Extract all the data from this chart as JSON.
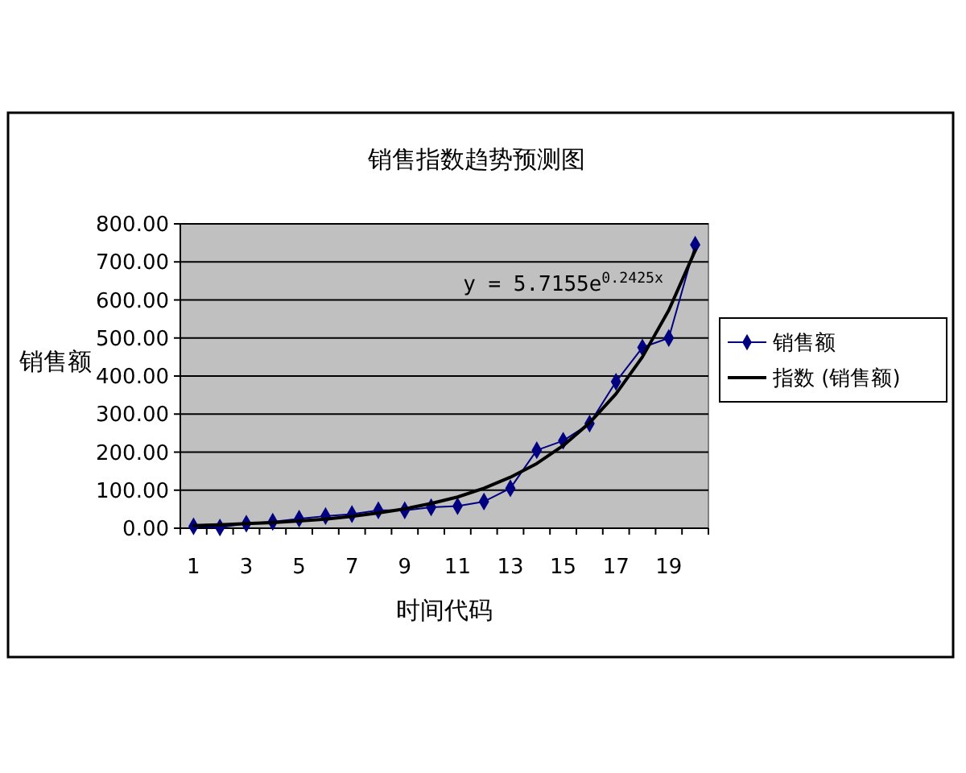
{
  "chart_data": {
    "type": "line",
    "title": "销售指数趋势预测图",
    "xlabel": "时间代码",
    "ylabel": "销售额",
    "x": [
      1,
      2,
      3,
      4,
      5,
      6,
      7,
      8,
      9,
      10,
      11,
      12,
      13,
      14,
      15,
      16,
      17,
      18,
      19,
      20
    ],
    "series": [
      {
        "name": "销售额",
        "color": "#000080",
        "values": [
          5,
          2,
          12,
          17,
          25,
          32,
          37,
          47,
          47,
          55,
          58,
          70,
          105,
          205,
          230,
          275,
          385,
          475,
          500,
          745
        ]
      },
      {
        "name": "指数 (销售额)",
        "type": "line",
        "color": "#000000",
        "marker": "none",
        "values": [
          7,
          9,
          12,
          15,
          19,
          24,
          31,
          40,
          51,
          65,
          82,
          105,
          134,
          170,
          217,
          277,
          353,
          450,
          573,
          730
        ]
      }
    ],
    "xlim": [
      0.5,
      20.5
    ],
    "xticks": [
      {
        "value": 0.5,
        "label": null
      },
      1,
      {
        "value": 1.5,
        "label": null
      },
      {
        "value": 2.5,
        "label": null
      },
      3,
      {
        "value": 3.5,
        "label": null
      },
      {
        "value": 4.5,
        "label": null
      },
      5,
      {
        "value": 5.5,
        "label": null
      },
      {
        "value": 6.5,
        "label": null
      },
      7,
      {
        "value": 7.5,
        "label": null
      },
      {
        "value": 8.5,
        "label": null
      },
      9,
      {
        "value": 9.5,
        "label": null
      },
      {
        "value": 10.5,
        "label": null
      },
      11,
      {
        "value": 11.5,
        "label": null
      },
      {
        "value": 12.5,
        "label": null
      },
      13,
      {
        "value": 13.5,
        "label": null
      },
      {
        "value": 14.5,
        "label": null
      },
      15,
      {
        "value": 15.5,
        "label": null
      },
      {
        "value": 16.5,
        "label": null
      },
      17,
      {
        "value": 17.5,
        "label": null
      },
      {
        "value": 18.5,
        "label": null
      },
      19,
      {
        "value": 19.5,
        "label": null
      },
      {
        "value": 20.5,
        "label": null
      }
    ],
    "ylim": [
      0,
      800
    ],
    "yticks": [
      {
        "value": 0,
        "label": "0.00"
      },
      {
        "value": 100,
        "label": "100.00"
      },
      {
        "value": 200,
        "label": "200.00"
      },
      {
        "value": 300,
        "label": "300.00"
      },
      {
        "value": 400,
        "label": "400.00"
      },
      {
        "value": 500,
        "label": "500.00"
      },
      {
        "value": 600,
        "label": "600.00"
      },
      {
        "value": 700,
        "label": "700.00"
      },
      {
        "value": 800,
        "label": "800.00"
      }
    ],
    "grid": "y",
    "legend": "right",
    "marker": "diamond",
    "annotations": [
      "y = 5.7155e$^{0.2425x}$"
    ]
  }
}
